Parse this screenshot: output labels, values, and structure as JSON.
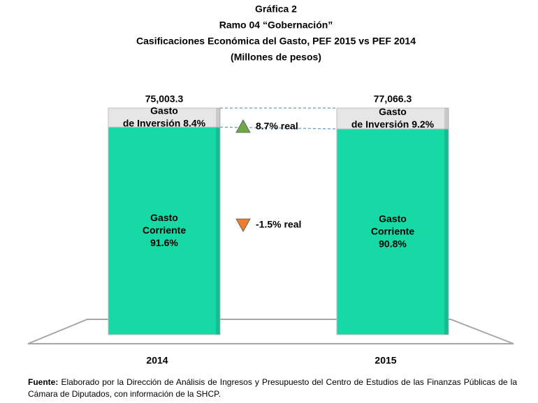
{
  "chart_data": {
    "type": "bar",
    "stacked": true,
    "title": [
      "Gráfica 2",
      "Ramo 04 “Gobernación”",
      "Casificaciones Económica del Gasto, PEF 2015 vs PEF 2014",
      "(Millones de pesos)"
    ],
    "categories": [
      "2014",
      "2015"
    ],
    "series": [
      {
        "color": "#17d9a6",
        "values": [
          91.6,
          90.8
        ],
        "value_labels": [
          "Gasto\nCorriente\n91.6%",
          "Gasto\nCorriente\n90.8%"
        ]
      },
      {
        "color": "#e6e6e6",
        "values": [
          8.4,
          9.2
        ],
        "value_labels": [
          "Gasto\nde Inversión 8.4%",
          "Gasto\nde Inversión 9.2%"
        ]
      }
    ],
    "totals": {
      "values": [
        75003.3,
        77066.3
      ],
      "value_labels": [
        "75,003.3",
        "77,066.3"
      ]
    },
    "ylim": [
      0,
      100
    ],
    "annotations": [
      {
        "text": "8.7% real",
        "direction": "up",
        "color": "#70a845"
      },
      {
        "text": "-1.5% real",
        "direction": "down",
        "color": "#ed7d31"
      }
    ]
  },
  "source": {
    "label": "Fuente:",
    "text": "Elaborado por la Dirección de Análisis de Ingresos y Presupuesto del Centro de Estudios de las Finanzas Públicas de la Cámara de Diputados, con información de la SHCP."
  }
}
